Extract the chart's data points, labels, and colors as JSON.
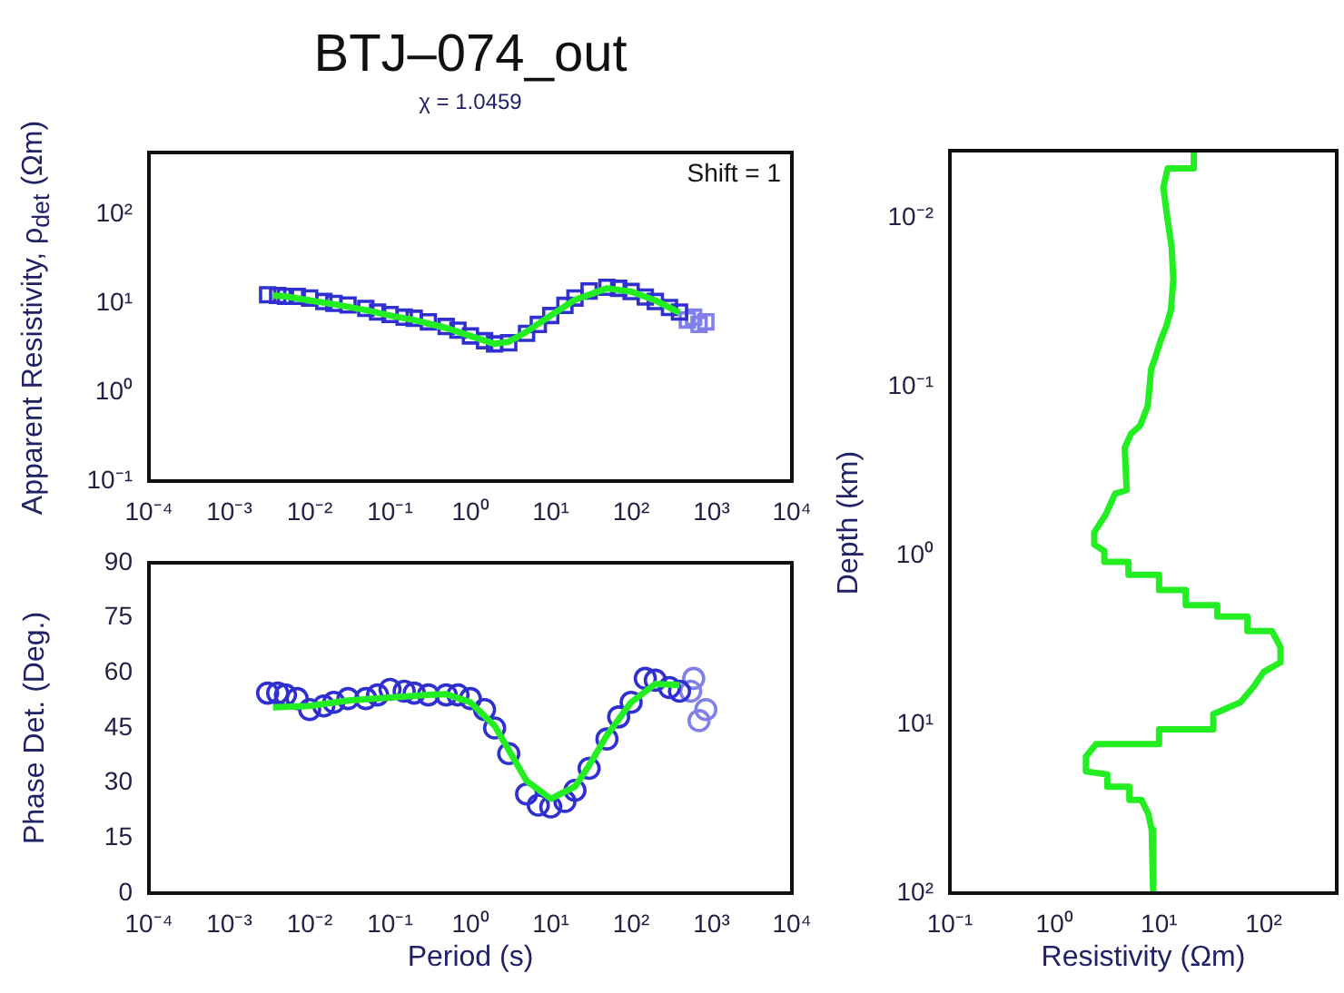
{
  "chart_data": [
    {
      "type": "scatter",
      "title": "BTJ–074_out",
      "subtitle": "χ = 1.0459",
      "ylabel": "Apparent Resistivity, ρ$_{det}$ (Ωm)",
      "log": "xy",
      "grid": false,
      "legend": false,
      "xlim": [
        0.0001,
        10000
      ],
      "xticks": [
        {
          "value": 0.0001,
          "label": "10⁻⁴"
        },
        {
          "value": 0.001,
          "label": "10⁻³"
        },
        {
          "value": 0.01,
          "label": "10⁻²"
        },
        {
          "value": 0.1,
          "label": "10⁻¹"
        },
        {
          "value": 1,
          "label": "10⁰"
        },
        {
          "value": 10,
          "label": "10¹"
        },
        {
          "value": 100,
          "label": "10²"
        },
        {
          "value": 1000,
          "label": "10³"
        },
        {
          "value": 10000,
          "label": "10⁴"
        }
      ],
      "ylim": [
        0.1,
        500
      ],
      "yticks": [
        {
          "value": 0.1,
          "label": "10⁻¹"
        },
        {
          "value": 1,
          "label": "10⁰"
        },
        {
          "value": 10,
          "label": "10¹"
        },
        {
          "value": 100,
          "label": "10²"
        }
      ],
      "annotations": [
        "Shift = 1"
      ],
      "series": [
        {
          "marker": "square",
          "color": "#3030d0",
          "x": [
            0.003,
            0.004,
            0.005,
            0.007,
            0.01,
            0.015,
            0.02,
            0.03,
            0.05,
            0.07,
            0.1,
            0.15,
            0.2,
            0.3,
            0.5,
            0.7,
            1,
            1.5,
            2,
            3,
            5,
            7,
            10,
            15,
            20,
            30,
            50,
            70,
            100,
            150,
            200,
            300,
            400
          ],
          "values": [
            12.5,
            12.3,
            12,
            12,
            11.5,
            10.5,
            10,
            9.6,
            8.8,
            8,
            7.5,
            7,
            6.8,
            6.2,
            5.5,
            5,
            4.3,
            3.8,
            3.5,
            3.6,
            4.6,
            5.8,
            7.3,
            9.5,
            11.5,
            13.8,
            15.2,
            14.8,
            13.6,
            11.8,
            10.5,
            9,
            8
          ]
        },
        {
          "marker": "square",
          "color": "#8080e8",
          "x": [
            500,
            600,
            700,
            850
          ],
          "values": [
            6.5,
            7,
            5.8,
            6.2
          ]
        },
        {
          "type": "line",
          "marker": "none",
          "color": "#22ee22",
          "x": [
            0.0035,
            0.005,
            0.01,
            0.02,
            0.05,
            0.1,
            0.2,
            0.5,
            1,
            2,
            3,
            5,
            10,
            20,
            50,
            100,
            200,
            400
          ],
          "values": [
            12.3,
            12,
            10.8,
            9.8,
            8.4,
            7.3,
            6.5,
            5.3,
            4.3,
            3.5,
            3.7,
            4.8,
            7.3,
            11,
            14.8,
            13.6,
            10.8,
            7.9
          ]
        }
      ]
    },
    {
      "type": "scatter",
      "xlabel": "Period (s)",
      "ylabel": "Phase Det. (Deg.)",
      "log": "x",
      "grid": false,
      "legend": false,
      "xlim": [
        0.0001,
        10000
      ],
      "xticks": [
        {
          "value": 0.0001,
          "label": "10⁻⁴"
        },
        {
          "value": 0.001,
          "label": "10⁻³"
        },
        {
          "value": 0.01,
          "label": "10⁻²"
        },
        {
          "value": 0.1,
          "label": "10⁻¹"
        },
        {
          "value": 1,
          "label": "10⁰"
        },
        {
          "value": 10,
          "label": "10¹"
        },
        {
          "value": 100,
          "label": "10²"
        },
        {
          "value": 1000,
          "label": "10³"
        },
        {
          "value": 10000,
          "label": "10⁴"
        }
      ],
      "ylim": [
        0,
        90
      ],
      "yticks": [
        0,
        15,
        30,
        45,
        60,
        75,
        90
      ],
      "series": [
        {
          "marker": "circle",
          "color": "#3030d0",
          "x": [
            0.003,
            0.004,
            0.005,
            0.007,
            0.01,
            0.015,
            0.02,
            0.03,
            0.05,
            0.07,
            0.1,
            0.15,
            0.2,
            0.3,
            0.5,
            0.7,
            1,
            1.5,
            2,
            3,
            5,
            7,
            10,
            15,
            20,
            30,
            50,
            70,
            100,
            150,
            200,
            300,
            400
          ],
          "values": [
            54.5,
            54.5,
            54,
            53,
            50,
            51,
            52,
            53,
            53,
            54,
            55.5,
            55,
            54.5,
            54,
            54,
            54,
            53,
            50,
            45,
            38,
            27,
            24,
            23.5,
            25,
            28,
            34,
            42,
            48,
            52,
            58.5,
            58,
            56,
            55
          ]
        },
        {
          "marker": "circle",
          "color": "#8080e8",
          "x": [
            550,
            600,
            700,
            850
          ],
          "values": [
            55,
            58.5,
            47,
            50
          ]
        },
        {
          "type": "line",
          "marker": "none",
          "color": "#22ee22",
          "x": [
            0.0035,
            0.01,
            0.03,
            0.1,
            0.3,
            0.5,
            1,
            2,
            3,
            5,
            10,
            20,
            30,
            50,
            100,
            200,
            400
          ],
          "values": [
            50.6,
            51,
            52.5,
            53.3,
            54,
            54.2,
            52,
            45.6,
            39,
            30.6,
            25.7,
            29,
            34.8,
            43,
            52,
            57,
            56.7
          ]
        }
      ]
    },
    {
      "type": "line",
      "xlabel": "Resistivity (Ωm)",
      "ylabel": "Depth (km)",
      "log": "xy",
      "grid": false,
      "legend": false,
      "xlim": [
        0.1,
        500
      ],
      "xticks": [
        {
          "value": 0.1,
          "label": "10⁻¹"
        },
        {
          "value": 1,
          "label": "10⁰"
        },
        {
          "value": 10,
          "label": "10¹"
        },
        {
          "value": 100,
          "label": "10²"
        }
      ],
      "ylim": [
        100,
        0.004
      ],
      "yticks": [
        {
          "value": 0.01,
          "label": "10⁻²"
        },
        {
          "value": 0.1,
          "label": "10⁻¹"
        },
        {
          "value": 1,
          "label": "10⁰"
        },
        {
          "value": 10,
          "label": "10¹"
        },
        {
          "value": 100,
          "label": "10²"
        }
      ],
      "series": [
        {
          "marker": "none",
          "color": "#22ee22",
          "x": [
            21.5,
            21.5,
            12.1,
            11,
            12,
            13.2,
            13.7,
            13,
            11.7,
            10.5,
            9.2,
            8.4,
            7.8,
            6.6,
            5.4,
            4.7,
            4.9,
            3.8,
            3.1,
            2.4,
            2.4,
            3,
            3,
            5.1,
            5.1,
            10,
            10,
            18,
            18,
            36,
            36,
            70,
            70,
            120,
            145,
            145,
            100,
            80,
            60,
            33,
            33,
            10,
            10,
            2.5,
            2,
            2,
            3.2,
            3.2,
            5.2,
            5.2,
            6.8,
            7.9,
            8.5,
            8.8
          ],
          "values": [
            0.004,
            0.0051,
            0.0051,
            0.0066,
            0.01,
            0.015,
            0.023,
            0.035,
            0.044,
            0.052,
            0.067,
            0.079,
            0.13,
            0.17,
            0.19,
            0.23,
            0.41,
            0.43,
            0.57,
            0.73,
            0.86,
            0.94,
            1.09,
            1.09,
            1.3,
            1.3,
            1.6,
            1.6,
            1.97,
            1.97,
            2.3,
            2.3,
            2.8,
            2.8,
            3.5,
            4.3,
            4.9,
            6,
            7.4,
            8.7,
            10.7,
            10.7,
            13.1,
            13.1,
            15.5,
            19,
            19.8,
            23.4,
            23.4,
            28,
            28,
            34,
            42,
            100
          ]
        }
      ]
    }
  ]
}
